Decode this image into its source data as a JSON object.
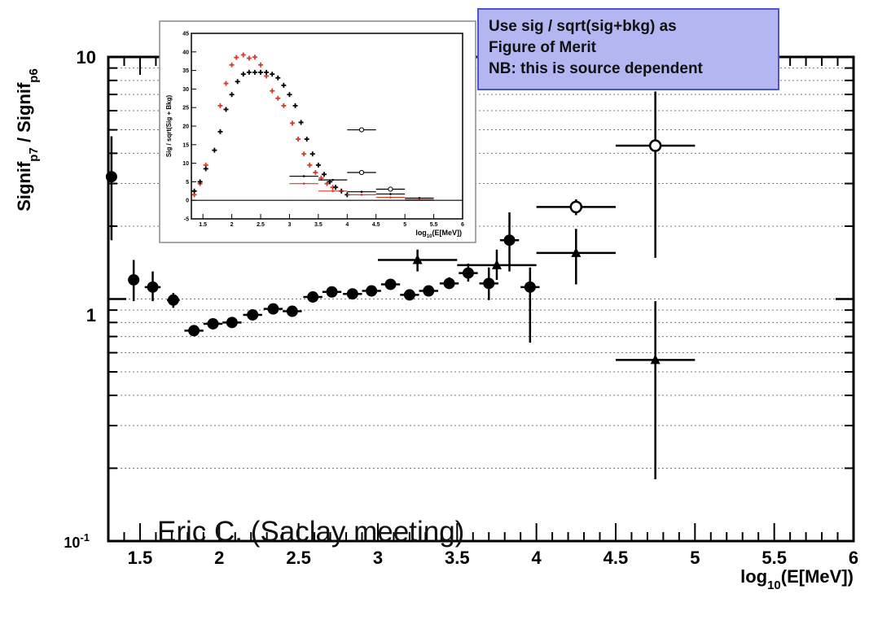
{
  "annotation_box": {
    "lines": [
      "Use sig / sqrt(sig+bkg) as",
      "Figure of Merit",
      "NB: this is source dependent"
    ],
    "fill": "#b3b6f0",
    "border": "#4a56c9"
  },
  "credit_text": "Eric C. (Saclay meeting)",
  "chart_data": [
    {
      "type": "scatter",
      "title": "",
      "ylabel": {
        "base": "Signif",
        "sub1": "p7",
        "mid": " / Signif",
        "sub2": "p6"
      },
      "xlabel": {
        "base": "log",
        "sub": "10",
        "rest": "(E[MeV])"
      },
      "xlim": [
        1.3,
        6.0
      ],
      "ylim": [
        0.1,
        10
      ],
      "log_y": true,
      "grid": "horizontal dotted",
      "x_ticks": [
        "1.5",
        "2",
        "2.5",
        "3",
        "3.5",
        "4",
        "4.5",
        "5",
        "5.5",
        "6"
      ],
      "y_ticks": {
        "top": "10",
        "mid": "1",
        "bottom_base": "10",
        "bottom_exp": "-1"
      },
      "series": [
        {
          "marker": "circle-filled",
          "points": [
            {
              "x": 1.32,
              "y": 3.2,
              "xerr": 0.02,
              "ylo": 1.75,
              "yhi": 4.7
            },
            {
              "x": 1.46,
              "y": 1.2,
              "xerr": 0.035,
              "ylo": 0.98,
              "yhi": 1.45
            },
            {
              "x": 1.58,
              "y": 1.12,
              "xerr": 0.05,
              "ylo": 0.98,
              "yhi": 1.3
            },
            {
              "x": 1.71,
              "y": 0.99,
              "xerr": 0.04,
              "ylo": 0.92,
              "yhi": 1.06
            },
            {
              "x": 1.84,
              "y": 0.74,
              "xerr": 0.06,
              "ylo": 0.72,
              "yhi": 0.77
            },
            {
              "x": 1.96,
              "y": 0.79,
              "xerr": 0.06,
              "ylo": 0.77,
              "yhi": 0.81
            },
            {
              "x": 2.08,
              "y": 0.8,
              "xerr": 0.06,
              "ylo": 0.78,
              "yhi": 0.83
            },
            {
              "x": 2.21,
              "y": 0.86,
              "xerr": 0.06,
              "ylo": 0.84,
              "yhi": 0.88
            },
            {
              "x": 2.34,
              "y": 0.91,
              "xerr": 0.06,
              "ylo": 0.89,
              "yhi": 0.93
            },
            {
              "x": 2.46,
              "y": 0.89,
              "xerr": 0.06,
              "ylo": 0.87,
              "yhi": 0.91
            },
            {
              "x": 2.59,
              "y": 1.02,
              "xerr": 0.06,
              "ylo": 1.0,
              "yhi": 1.04
            },
            {
              "x": 2.71,
              "y": 1.07,
              "xerr": 0.06,
              "ylo": 1.05,
              "yhi": 1.09
            },
            {
              "x": 2.84,
              "y": 1.05,
              "xerr": 0.06,
              "ylo": 1.03,
              "yhi": 1.07
            },
            {
              "x": 2.96,
              "y": 1.08,
              "xerr": 0.06,
              "ylo": 1.06,
              "yhi": 1.1
            },
            {
              "x": 3.08,
              "y": 1.15,
              "xerr": 0.06,
              "ylo": 1.12,
              "yhi": 1.18
            },
            {
              "x": 3.2,
              "y": 1.04,
              "xerr": 0.06,
              "ylo": 1.01,
              "yhi": 1.07
            },
            {
              "x": 3.32,
              "y": 1.08,
              "xerr": 0.06,
              "ylo": 1.04,
              "yhi": 1.12
            },
            {
              "x": 3.45,
              "y": 1.16,
              "xerr": 0.06,
              "ylo": 1.1,
              "yhi": 1.23
            },
            {
              "x": 3.57,
              "y": 1.28,
              "xerr": 0.06,
              "ylo": 1.18,
              "yhi": 1.4
            },
            {
              "x": 3.7,
              "y": 1.16,
              "xerr": 0.06,
              "ylo": 0.99,
              "yhi": 1.35
            },
            {
              "x": 3.83,
              "y": 1.75,
              "xerr": 0.06,
              "ylo": 1.3,
              "yhi": 2.28
            },
            {
              "x": 3.96,
              "y": 1.12,
              "xerr": 0.06,
              "ylo": 0.66,
              "yhi": 1.35
            }
          ]
        },
        {
          "marker": "triangle-filled",
          "points": [
            {
              "x": 3.25,
              "y": 1.45,
              "xerr": 0.25,
              "ylo": 1.3,
              "yhi": 1.6
            },
            {
              "x": 3.75,
              "y": 1.38,
              "xerr": 0.25,
              "ylo": 1.2,
              "yhi": 1.6
            },
            {
              "x": 4.25,
              "y": 1.55,
              "xerr": 0.25,
              "ylo": 1.15,
              "yhi": 1.95
            },
            {
              "x": 4.75,
              "y": 0.56,
              "xerr": 0.25,
              "ylo": 0.18,
              "yhi": 0.98
            }
          ]
        },
        {
          "marker": "circle-open",
          "points": [
            {
              "x": 4.25,
              "y": 2.4,
              "xerr": 0.25,
              "ylo": 2.22,
              "yhi": 2.58
            },
            {
              "x": 4.75,
              "y": 4.3,
              "xerr": 0.25,
              "ylo": 1.48,
              "yhi": 7.2
            }
          ]
        }
      ]
    },
    {
      "type": "scatter",
      "title": "",
      "ylabel": "Sig / sqrt(Sig + Bkg)",
      "xlabel": {
        "base": "log",
        "sub": "10",
        "rest": "(E[MeV])"
      },
      "xlim": [
        1.3,
        6.0
      ],
      "ylim": [
        -5,
        45
      ],
      "x_ticks": [
        "1.5",
        "2",
        "2.5",
        "3",
        "3.5",
        "4",
        "4.5",
        "5",
        "5.5",
        "6"
      ],
      "y_ticks": [
        "-5",
        "0",
        "5",
        "10",
        "15",
        "20",
        "25",
        "30",
        "35",
        "40",
        "45"
      ],
      "colors": {
        "red": "#d93a2b",
        "black": "#000000"
      },
      "series": [
        {
          "color": "red",
          "marker": "plus",
          "points": [
            {
              "x": 1.35,
              "y": 1.5
            },
            {
              "x": 1.45,
              "y": 4.5
            },
            {
              "x": 1.55,
              "y": 9.5
            },
            {
              "x": 1.8,
              "y": 25.5
            },
            {
              "x": 1.9,
              "y": 31.5
            },
            {
              "x": 2.0,
              "y": 36.5
            },
            {
              "x": 2.08,
              "y": 38.5
            },
            {
              "x": 2.2,
              "y": 39.2
            },
            {
              "x": 2.3,
              "y": 38.3
            },
            {
              "x": 2.4,
              "y": 38.6
            },
            {
              "x": 2.5,
              "y": 36.5
            },
            {
              "x": 2.6,
              "y": 33.5
            },
            {
              "x": 2.7,
              "y": 29.5
            },
            {
              "x": 2.8,
              "y": 27.5
            },
            {
              "x": 2.9,
              "y": 25.5
            },
            {
              "x": 3.05,
              "y": 20.8
            },
            {
              "x": 3.15,
              "y": 16.5
            },
            {
              "x": 3.25,
              "y": 12.5
            },
            {
              "x": 3.35,
              "y": 9.5
            },
            {
              "x": 3.45,
              "y": 7.5
            },
            {
              "x": 3.55,
              "y": 6.0
            },
            {
              "x": 3.65,
              "y": 4.5
            },
            {
              "x": 3.75,
              "y": 3.5
            }
          ]
        },
        {
          "color": "black",
          "marker": "plus",
          "points": [
            {
              "x": 1.35,
              "y": 2.5
            },
            {
              "x": 1.45,
              "y": 5.0
            },
            {
              "x": 1.55,
              "y": 8.5
            },
            {
              "x": 1.7,
              "y": 13.5
            },
            {
              "x": 1.8,
              "y": 18.5
            },
            {
              "x": 1.9,
              "y": 24.5
            },
            {
              "x": 2.0,
              "y": 28.5
            },
            {
              "x": 2.1,
              "y": 32.0
            },
            {
              "x": 2.2,
              "y": 34.0
            },
            {
              "x": 2.3,
              "y": 34.5
            },
            {
              "x": 2.4,
              "y": 34.5
            },
            {
              "x": 2.5,
              "y": 34.5
            },
            {
              "x": 2.6,
              "y": 34.5
            },
            {
              "x": 2.7,
              "y": 34.0
            },
            {
              "x": 2.8,
              "y": 33.0
            },
            {
              "x": 2.9,
              "y": 31.0
            },
            {
              "x": 3.0,
              "y": 28.5
            },
            {
              "x": 3.1,
              "y": 25.5
            },
            {
              "x": 3.2,
              "y": 21.0
            },
            {
              "x": 3.3,
              "y": 16.5
            },
            {
              "x": 3.4,
              "y": 12.5
            },
            {
              "x": 3.5,
              "y": 9.5
            },
            {
              "x": 3.6,
              "y": 7.0
            },
            {
              "x": 3.7,
              "y": 5.0
            },
            {
              "x": 3.8,
              "y": 3.5
            },
            {
              "x": 3.9,
              "y": 2.5
            },
            {
              "x": 4.0,
              "y": 1.5
            }
          ]
        },
        {
          "color": "black",
          "marker": "hbar",
          "points": [
            {
              "x": 3.25,
              "y": 6.5,
              "xerr": 0.25
            },
            {
              "x": 3.75,
              "y": 5.5,
              "xerr": 0.25
            },
            {
              "x": 4.25,
              "y": 2.3,
              "xerr": 0.25
            },
            {
              "x": 4.75,
              "y": 1.7,
              "xerr": 0.25
            },
            {
              "x": 5.25,
              "y": 0.6,
              "xerr": 0.25
            }
          ]
        },
        {
          "color": "red",
          "marker": "hbar",
          "points": [
            {
              "x": 3.25,
              "y": 4.5,
              "xerr": 0.25
            },
            {
              "x": 3.75,
              "y": 2.5,
              "xerr": 0.25
            },
            {
              "x": 4.25,
              "y": 1.5,
              "xerr": 0.25
            },
            {
              "x": 4.75,
              "y": 0.8,
              "xerr": 0.25
            },
            {
              "x": 5.25,
              "y": 0.2,
              "xerr": 0.25
            }
          ]
        },
        {
          "color": "black",
          "marker": "circle-open",
          "points": [
            {
              "x": 4.25,
              "y": 19.0,
              "xerr": 0.25
            },
            {
              "x": 4.25,
              "y": 7.5,
              "xerr": 0.25
            },
            {
              "x": 4.75,
              "y": 3.0,
              "xerr": 0.25
            }
          ]
        }
      ]
    }
  ]
}
